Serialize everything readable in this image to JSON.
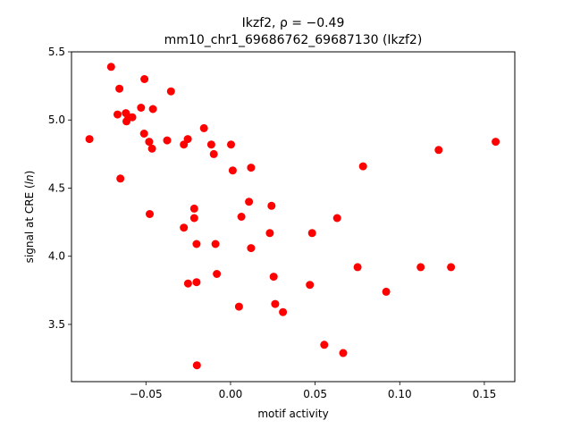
{
  "chart_data": {
    "type": "scatter",
    "title_line1": "Ikzf2, ρ = −0.49",
    "title_line2": "mm10_chr1_69686762_69687130 (Ikzf2)",
    "xlabel": "motif activity",
    "ylabel_parts": [
      "signal at CRE (",
      "ln",
      ")"
    ],
    "xlim": [
      -0.094,
      0.168
    ],
    "ylim": [
      3.08,
      5.5
    ],
    "xticks": [
      -0.05,
      0.0,
      0.05,
      0.1,
      0.15
    ],
    "xtick_labels": [
      "−0.05",
      "0.00",
      "0.05",
      "0.10",
      "0.15"
    ],
    "yticks": [
      3.5,
      4.0,
      4.5,
      5.0,
      5.5
    ],
    "ytick_labels": [
      "3.5",
      "4.0",
      "4.5",
      "5.0",
      "5.5"
    ],
    "grid": false,
    "marker_color": "#ff0000",
    "points": [
      {
        "x": -0.0834,
        "y": 4.86
      },
      {
        "x": -0.0706,
        "y": 5.39
      },
      {
        "x": -0.0668,
        "y": 5.04
      },
      {
        "x": -0.0657,
        "y": 5.23
      },
      {
        "x": -0.0651,
        "y": 4.57
      },
      {
        "x": -0.0619,
        "y": 5.05
      },
      {
        "x": -0.0615,
        "y": 4.99
      },
      {
        "x": -0.0603,
        "y": 5.02
      },
      {
        "x": -0.0581,
        "y": 5.02
      },
      {
        "x": -0.0529,
        "y": 5.09
      },
      {
        "x": -0.0511,
        "y": 4.9
      },
      {
        "x": -0.0509,
        "y": 5.3
      },
      {
        "x": -0.0481,
        "y": 4.84
      },
      {
        "x": -0.0478,
        "y": 4.31
      },
      {
        "x": -0.0464,
        "y": 4.79
      },
      {
        "x": -0.0459,
        "y": 5.08
      },
      {
        "x": -0.0375,
        "y": 4.85
      },
      {
        "x": -0.0352,
        "y": 5.21
      },
      {
        "x": -0.0276,
        "y": 4.82
      },
      {
        "x": -0.0276,
        "y": 4.21
      },
      {
        "x": -0.0253,
        "y": 4.86
      },
      {
        "x": -0.0251,
        "y": 3.8
      },
      {
        "x": -0.0215,
        "y": 4.35
      },
      {
        "x": -0.0215,
        "y": 4.28
      },
      {
        "x": -0.0201,
        "y": 4.09
      },
      {
        "x": -0.0201,
        "y": 3.81
      },
      {
        "x": -0.0199,
        "y": 3.2
      },
      {
        "x": -0.0157,
        "y": 4.94
      },
      {
        "x": -0.0114,
        "y": 4.82
      },
      {
        "x": -0.0099,
        "y": 4.75
      },
      {
        "x": -0.0089,
        "y": 4.09
      },
      {
        "x": -0.0081,
        "y": 3.87
      },
      {
        "x": 0.0003,
        "y": 4.82
      },
      {
        "x": 0.0013,
        "y": 4.63
      },
      {
        "x": 0.005,
        "y": 3.63
      },
      {
        "x": 0.0064,
        "y": 4.29
      },
      {
        "x": 0.0109,
        "y": 4.4
      },
      {
        "x": 0.0121,
        "y": 4.65
      },
      {
        "x": 0.0121,
        "y": 4.06
      },
      {
        "x": 0.0232,
        "y": 4.17
      },
      {
        "x": 0.0242,
        "y": 4.37
      },
      {
        "x": 0.0255,
        "y": 3.85
      },
      {
        "x": 0.0264,
        "y": 3.65
      },
      {
        "x": 0.031,
        "y": 3.59
      },
      {
        "x": 0.0469,
        "y": 3.79
      },
      {
        "x": 0.0482,
        "y": 4.17
      },
      {
        "x": 0.0554,
        "y": 3.35
      },
      {
        "x": 0.063,
        "y": 4.28
      },
      {
        "x": 0.0666,
        "y": 3.29
      },
      {
        "x": 0.0751,
        "y": 3.92
      },
      {
        "x": 0.0783,
        "y": 4.66
      },
      {
        "x": 0.092,
        "y": 3.74
      },
      {
        "x": 0.1124,
        "y": 3.92
      },
      {
        "x": 0.123,
        "y": 4.78
      },
      {
        "x": 0.1303,
        "y": 3.92
      },
      {
        "x": 0.1567,
        "y": 4.84
      }
    ]
  }
}
